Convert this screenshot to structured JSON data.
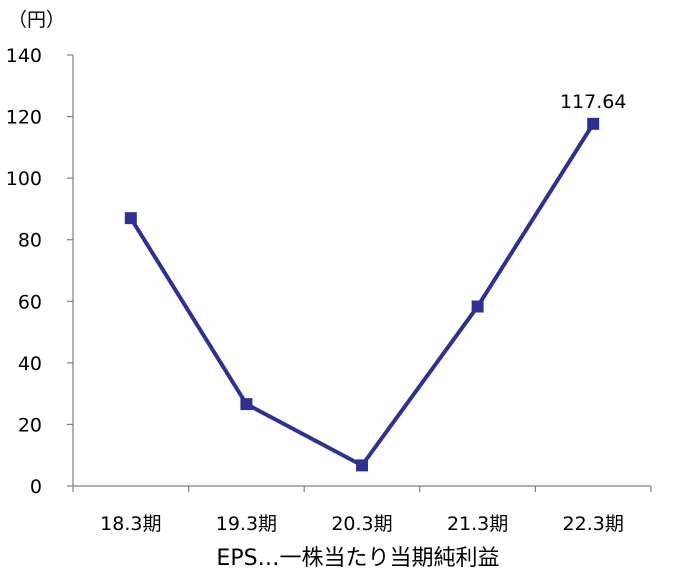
{
  "chart_data": {
    "type": "line",
    "unit_label": "（円）",
    "caption": "EPS…一株当たり当期純利益",
    "categories": [
      "18.3期",
      "19.3期",
      "20.3期",
      "21.3期",
      "22.3期"
    ],
    "series": [
      {
        "values": [
          87.0,
          26.6,
          6.7,
          58.3,
          117.64
        ],
        "color": "#2E3192"
      }
    ],
    "data_labels": [
      {
        "index": 4,
        "text": "117.64"
      }
    ],
    "yticks": [
      "0",
      "20",
      "40",
      "60",
      "80",
      "100",
      "120",
      "140"
    ],
    "ylim": [
      0,
      140
    ],
    "grid": false,
    "axis_color": "#7f7f7f"
  }
}
